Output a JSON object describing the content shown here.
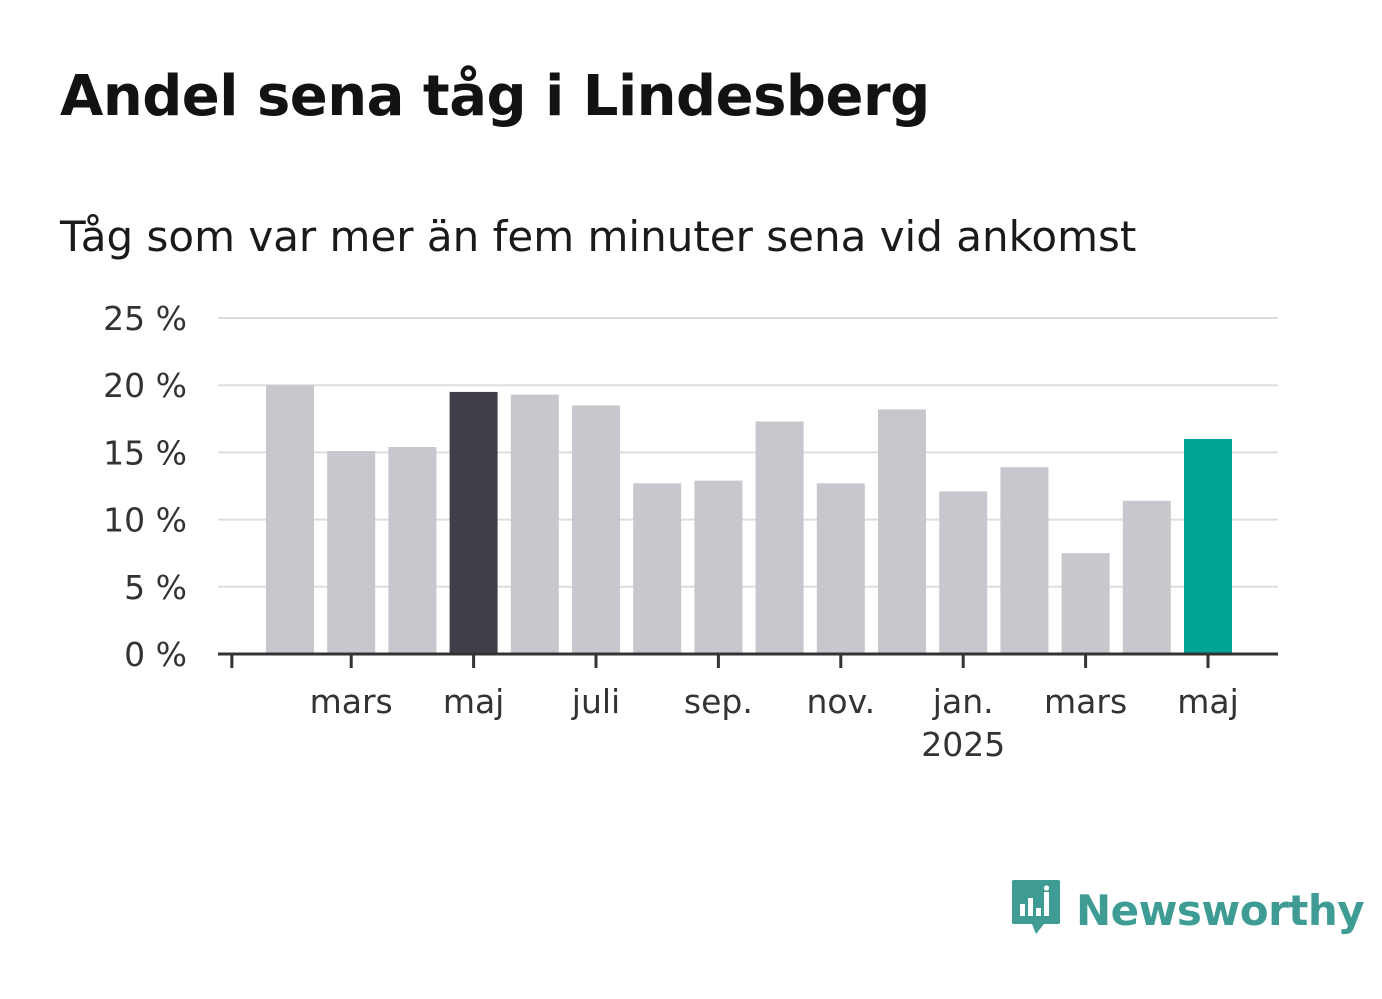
{
  "header": {
    "title": "Andel sena tåg i Lindesberg",
    "subtitle": "Tåg som var mer än fem minuter sena vid ankomst"
  },
  "brand": {
    "logo_text": "Newsworthy",
    "logo_icon": "bar-chart-speech-bubble-icon",
    "color": "#3e9c94"
  },
  "chart_data": {
    "type": "bar",
    "y_unit": "%",
    "ylim": [
      0,
      25
    ],
    "yticks": [
      0,
      5,
      10,
      15,
      20,
      25
    ],
    "ytick_labels": [
      "0 %",
      "5 %",
      "10 %",
      "15 %",
      "20 %",
      "25 %"
    ],
    "grid": true,
    "values": [
      20.0,
      15.1,
      15.4,
      19.5,
      19.3,
      18.5,
      12.7,
      12.9,
      17.3,
      12.7,
      18.2,
      12.1,
      13.9,
      7.5,
      11.4,
      16.0
    ],
    "colors": {
      "default": "#c8c7cd",
      "highlight_same_month_last_year": "#3f3e49",
      "latest": "#00a598",
      "axis": "#333333",
      "grid": "#dddddd"
    },
    "highlight_index": 3,
    "latest_index": 15,
    "x_ticks": [
      {
        "label": "",
        "bar": -0.95
      },
      {
        "label": "mars",
        "bar": 1
      },
      {
        "label": "maj",
        "bar": 3
      },
      {
        "label": "juli",
        "bar": 5
      },
      {
        "label": "sep.",
        "bar": 7
      },
      {
        "label": "nov.",
        "bar": 9
      },
      {
        "label": "jan.",
        "sublabel": "2025",
        "bar": 11
      },
      {
        "label": "mars",
        "bar": 13
      },
      {
        "label": "maj",
        "bar": 15
      }
    ]
  }
}
